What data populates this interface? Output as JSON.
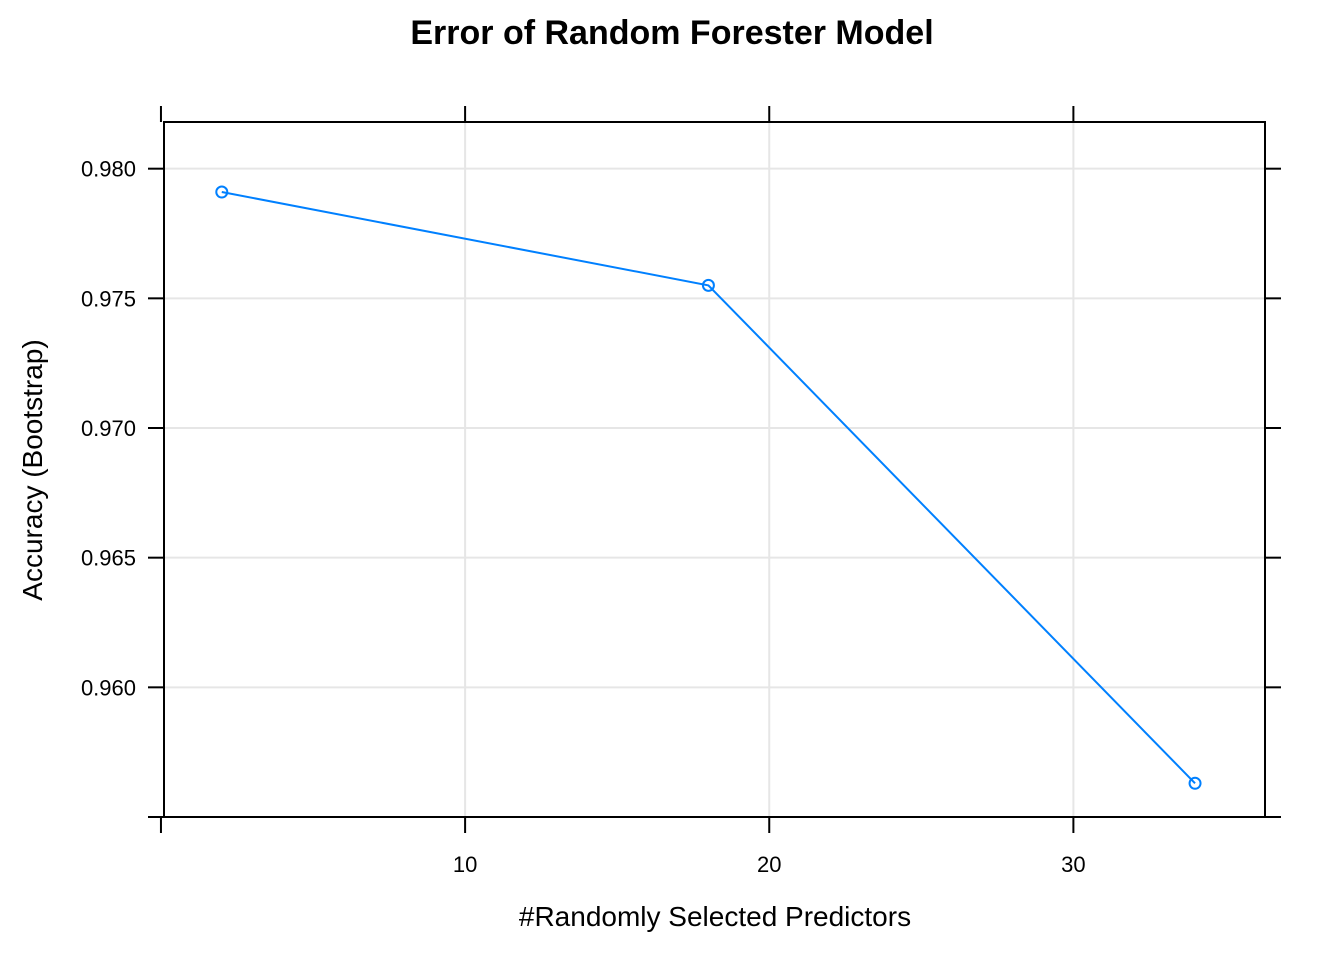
{
  "chart_data": {
    "type": "line",
    "title": "Error of Random Forester Model",
    "xlabel": "#Randomly Selected Predictors",
    "ylabel": "Accuracy (Bootstrap)",
    "x": [
      2,
      18,
      34
    ],
    "series": [
      {
        "values": [
          0.9791,
          0.9755,
          0.9563
        ]
      }
    ],
    "xlim": [
      0.1,
      36.3
    ],
    "ylim": [
      0.955,
      0.9818
    ],
    "xticks": [
      10,
      20,
      30
    ],
    "xtick_labels": [
      "10",
      "20",
      "30"
    ],
    "yticks": [
      0.96,
      0.965,
      0.97,
      0.975,
      0.98
    ],
    "ytick_labels": [
      "0.960",
      "0.965",
      "0.970",
      "0.975",
      "0.980"
    ],
    "extra_y_ticks": [
      0.955
    ],
    "extra_x_ticks": [
      0
    ],
    "grid": true,
    "marker": "open-circle",
    "colors": {
      "series": "#0080ff",
      "grid": "#e6e6e6",
      "frame": "#000000"
    }
  }
}
